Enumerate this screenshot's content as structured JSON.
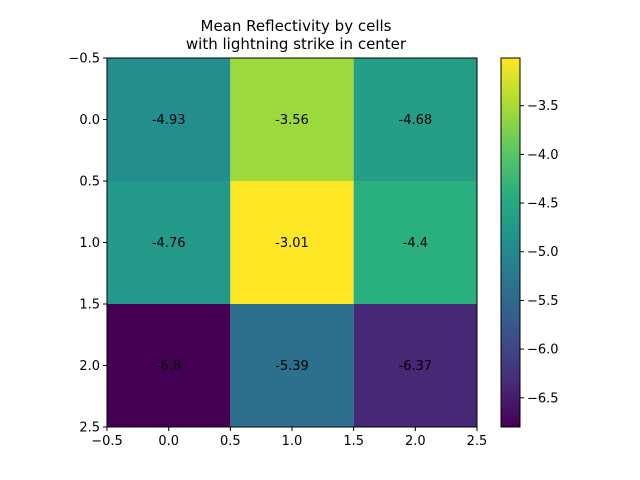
{
  "chart_data": {
    "type": "heatmap",
    "title_lines": [
      "Mean Reflectivity by cells",
      "with lightning strike in center"
    ],
    "rows": 3,
    "cols": 3,
    "values": [
      [
        -4.93,
        -3.56,
        -4.68
      ],
      [
        -4.76,
        -3.01,
        -4.4
      ],
      [
        -6.8,
        -5.39,
        -6.37
      ]
    ],
    "cell_labels": [
      [
        "-4.93",
        "-3.56",
        "-4.68"
      ],
      [
        "-4.76",
        "-3.01",
        "-4.4"
      ],
      [
        "-6.8",
        "-5.39",
        "-6.37"
      ]
    ],
    "xlim": [
      -0.5,
      2.5
    ],
    "ylim": [
      2.5,
      -0.5
    ],
    "x_ticks": [
      -0.5,
      0.0,
      0.5,
      1.0,
      1.5,
      2.0,
      2.5
    ],
    "x_tick_labels": [
      "−0.5",
      "0.0",
      "0.5",
      "1.0",
      "1.5",
      "2.0",
      "2.5"
    ],
    "y_ticks": [
      -0.5,
      0.0,
      0.5,
      1.0,
      1.5,
      2.0,
      2.5
    ],
    "y_tick_labels": [
      "−0.5",
      "0.0",
      "0.5",
      "1.0",
      "1.5",
      "2.0",
      "2.5"
    ],
    "colormap": "viridis",
    "colorbar": {
      "vmin": -6.8,
      "vmax": -3.01,
      "ticks": [
        -3.5,
        -4.0,
        -4.5,
        -5.0,
        -5.5,
        -6.0,
        -6.5
      ],
      "tick_labels": [
        "−3.5",
        "−4.0",
        "−4.5",
        "−5.0",
        "−5.5",
        "−6.0",
        "−6.5"
      ]
    },
    "grid": false
  }
}
